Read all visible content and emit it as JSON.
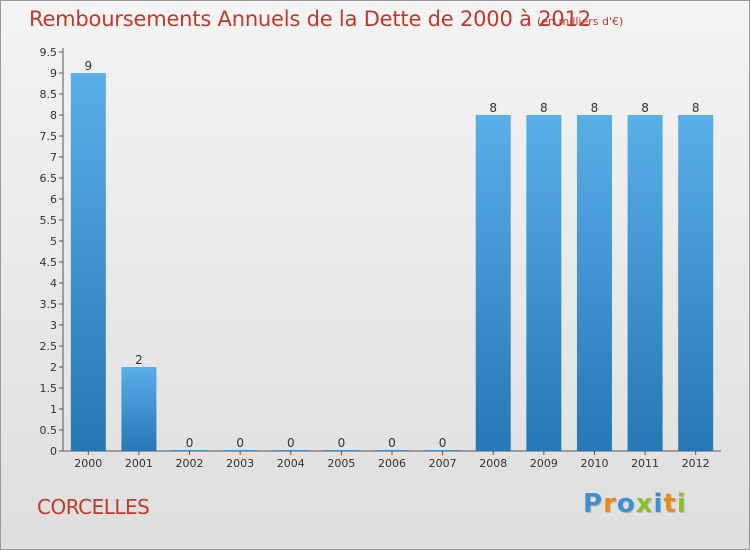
{
  "header": {
    "title": "Remboursements Annuels de la Dette de 2000 à 2012",
    "unit": "(en milliers d'€)"
  },
  "footer": {
    "commune": "CORCELLES",
    "brand": "Proxiti"
  },
  "colors": {
    "title": "#c0392b",
    "bar_top": "#5aaee8",
    "bar_bottom": "#2677b5",
    "brand_letters": [
      "#3d8fd1",
      "#e58a1f",
      "#3d8fd1",
      "#8bbf2c",
      "#3d8fd1",
      "#e58a1f",
      "#8bbf2c"
    ]
  },
  "chart_data": {
    "type": "bar",
    "categories": [
      "2000",
      "2001",
      "2002",
      "2003",
      "2004",
      "2005",
      "2006",
      "2007",
      "2008",
      "2009",
      "2010",
      "2011",
      "2012"
    ],
    "values": [
      9,
      2,
      0,
      0,
      0,
      0,
      0,
      0,
      8,
      8,
      8,
      8,
      8
    ],
    "data_labels": [
      "9",
      "2",
      "0",
      "0",
      "0",
      "0",
      "0",
      "0",
      "8",
      "8",
      "8",
      "8",
      "8"
    ],
    "yticks": [
      "0",
      "0.5",
      "1",
      "1.5",
      "2",
      "2.5",
      "3",
      "3.5",
      "4",
      "4.5",
      "5",
      "5.5",
      "6",
      "6.5",
      "7",
      "7.5",
      "8",
      "8.5",
      "9",
      "9.5"
    ],
    "ylim": [
      0,
      9.5
    ],
    "grid": false
  }
}
